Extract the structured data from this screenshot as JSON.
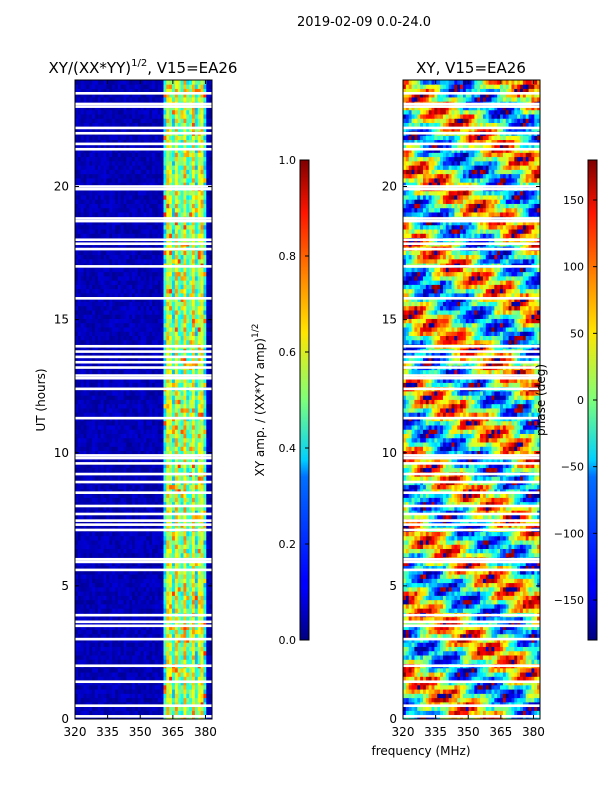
{
  "suptitle": "2019-02-09 0.0-24.0",
  "shared_xlabel": "frequency (MHz)",
  "colors": {
    "frame": "#000000",
    "background": "#ffffff",
    "flag": "#ffffff"
  },
  "chart_data": [
    {
      "type": "heatmap",
      "title_prefix": "XY/(XX*YY)",
      "title_exp": "1/2",
      "title_suffix": ", V15=EA26",
      "xlabel": "",
      "ylabel": "UT (hours)",
      "xlim": [
        320,
        383
      ],
      "ylim": [
        0,
        24
      ],
      "xticks": [
        320,
        335,
        350,
        365,
        380
      ],
      "yticks": [
        0,
        5,
        10,
        15,
        20
      ],
      "colormap": "jet",
      "colorbar": {
        "label_main": "XY amp. / (XX*YY amp)",
        "label_exp": "1/2",
        "range": [
          0.0,
          1.0
        ],
        "ticks": [
          0.0,
          0.2,
          0.4,
          0.6,
          0.8,
          1.0
        ],
        "tick_labels": [
          "0.0",
          "0.2",
          "0.4",
          "0.6",
          "0.8",
          "1.0"
        ]
      },
      "bright_band_mhz": [
        361,
        380
      ],
      "flagged_hours": [
        0.1,
        0.5,
        1.4,
        2.0,
        3.0,
        3.5,
        3.65,
        3.9,
        5.6,
        5.9,
        6.0,
        7.1,
        7.3,
        7.45,
        7.7,
        8.0,
        8.5,
        8.9,
        9.2,
        9.6,
        9.8,
        9.9,
        11.3,
        12.4,
        12.8,
        12.9,
        13.2,
        13.4,
        13.6,
        13.8,
        14.0,
        15.8,
        17.0,
        17.65,
        17.85,
        18.0,
        18.7,
        18.8,
        19.9,
        20.0,
        21.4,
        21.6,
        22.0,
        22.2,
        23.0,
        23.1,
        23.5
      ]
    },
    {
      "type": "heatmap",
      "title": "XY, V15=EA26",
      "xlabel": "",
      "ylabel": "",
      "xlim": [
        320,
        383
      ],
      "ylim": [
        0,
        24
      ],
      "xticks": [
        320,
        335,
        350,
        365,
        380
      ],
      "yticks": [
        0,
        5,
        10,
        15,
        20
      ],
      "colormap": "jet",
      "colorbar": {
        "label": "phase (deg)",
        "range": [
          -180,
          180
        ],
        "ticks": [
          -150,
          -100,
          -50,
          0,
          50,
          100,
          150
        ],
        "tick_labels": [
          "−150",
          "−100",
          "−50",
          "0",
          "50",
          "100",
          "150"
        ]
      },
      "flagged_hours": [
        0.1,
        0.5,
        1.4,
        2.0,
        3.0,
        3.5,
        3.65,
        3.9,
        5.6,
        5.9,
        6.0,
        7.1,
        7.3,
        7.45,
        7.7,
        8.0,
        8.5,
        8.9,
        9.2,
        9.6,
        9.8,
        9.9,
        11.3,
        12.4,
        12.8,
        12.9,
        13.2,
        13.4,
        13.6,
        13.8,
        14.0,
        15.8,
        17.0,
        17.65,
        17.85,
        18.0,
        18.7,
        18.8,
        19.9,
        20.0,
        21.4,
        21.6,
        22.0,
        22.2,
        23.0,
        23.1,
        23.5
      ]
    }
  ]
}
